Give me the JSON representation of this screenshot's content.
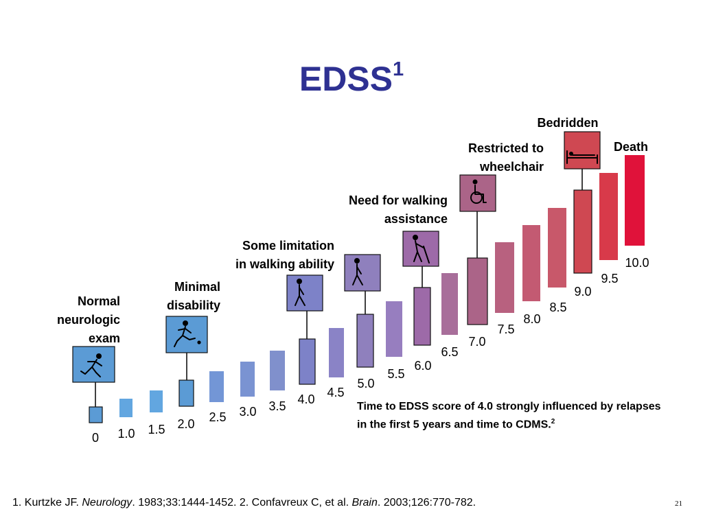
{
  "title": {
    "text": "EDSS",
    "superscript": "1"
  },
  "steps": [
    {
      "value": "0",
      "color": "#5b9bd5"
    },
    {
      "value": "1.0",
      "color": "#62a6e0"
    },
    {
      "value": "1.5",
      "color": "#62a6e0"
    },
    {
      "value": "2.0",
      "color": "#5b9bd5"
    },
    {
      "value": "2.5",
      "color": "#7396d6"
    },
    {
      "value": "3.0",
      "color": "#7a93d2"
    },
    {
      "value": "3.5",
      "color": "#8090cc"
    },
    {
      "value": "4.0",
      "color": "#7d82c8"
    },
    {
      "value": "4.5",
      "color": "#8a83c6"
    },
    {
      "value": "5.0",
      "color": "#8f80bd"
    },
    {
      "value": "5.5",
      "color": "#977ebf"
    },
    {
      "value": "6.0",
      "color": "#9d6aa8"
    },
    {
      "value": "6.5",
      "color": "#a86e9a"
    },
    {
      "value": "7.0",
      "color": "#ab6488"
    },
    {
      "value": "7.5",
      "color": "#b8617f"
    },
    {
      "value": "8.0",
      "color": "#c35a72"
    },
    {
      "value": "8.5",
      "color": "#c8586a"
    },
    {
      "value": "9.0",
      "color": "#cf4852"
    },
    {
      "value": "9.5",
      "color": "#d83a4a"
    },
    {
      "value": "10.0",
      "color": "#e0123a"
    }
  ],
  "milestones": [
    {
      "step": "0",
      "label": [
        "Normal",
        "neurologic",
        "exam"
      ],
      "icon": "running-person-icon"
    },
    {
      "step": "2.0",
      "label": [
        "Minimal",
        "disability"
      ],
      "icon": "kicking-ball-icon"
    },
    {
      "step": "4.0",
      "label": [
        "Some limitation",
        "in walking ability"
      ],
      "icon": "walking-person-icon"
    },
    {
      "step": "5.0",
      "label": [],
      "icon": "walking-person-icon"
    },
    {
      "step": "6.0",
      "label": [
        "Need for walking",
        "assistance"
      ],
      "icon": "walking-cane-icon"
    },
    {
      "step": "7.0",
      "label": [
        "Restricted to",
        "wheelchair"
      ],
      "icon": "wheelchair-icon"
    },
    {
      "step": "9.0",
      "label": [
        "Bedridden"
      ],
      "icon": "bed-icon"
    },
    {
      "step": "10.0",
      "label": [
        "Death"
      ],
      "icon": ""
    }
  ],
  "note": {
    "text": "Time to EDSS score of 4.0 strongly influenced by relapses in the first 5 years and time to CDMS.",
    "superscript": "2"
  },
  "footer": {
    "ref1_prefix": "1. Kurtzke JF. ",
    "ref1_journal": "Neurology",
    "ref1_suffix": ". 1983;33:1444-1452. 2. Confavreux C, et al. ",
    "ref2_journal": "Brain",
    "ref2_suffix": ". 2003;126:770-782."
  },
  "page_number": "21"
}
